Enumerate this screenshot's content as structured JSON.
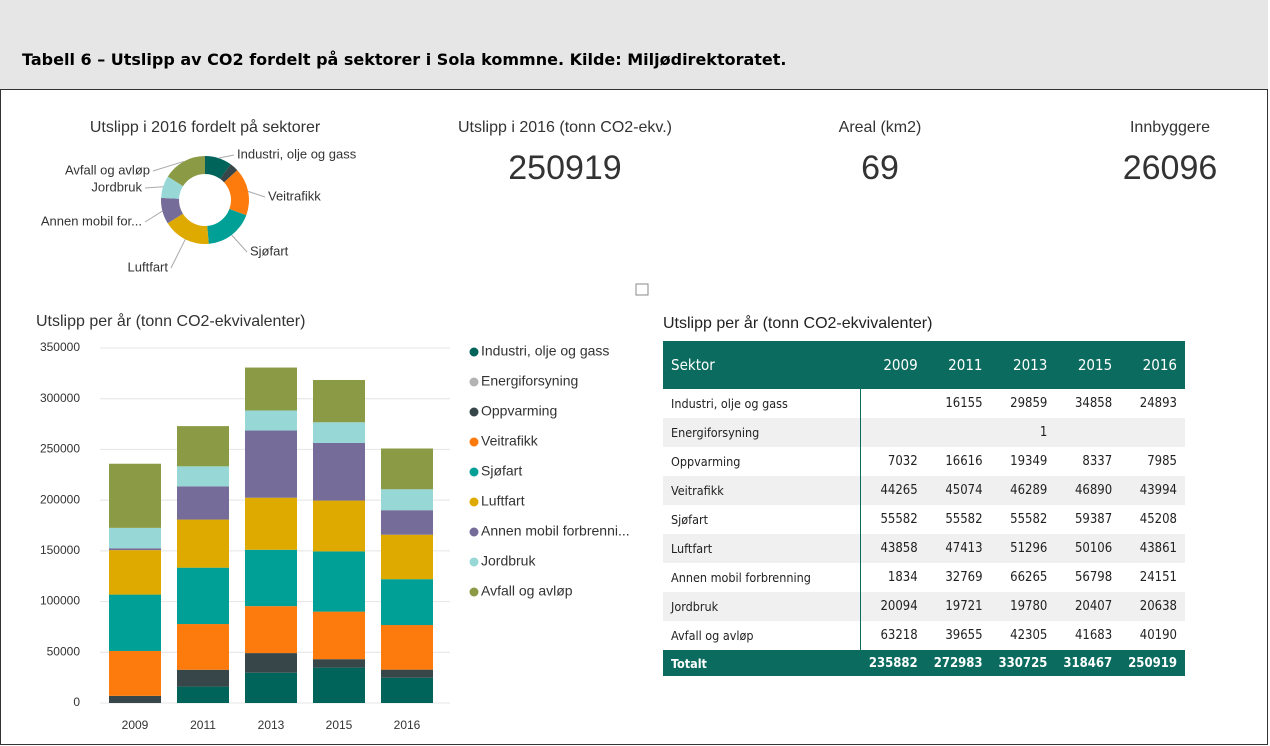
{
  "header": {
    "title": "Tabell 6 – Utslipp av CO2 fordelt på sektorer i Sola kommne. Kilde: Miljødirektoratet."
  },
  "kpis": [
    {
      "label": "Utslipp i 2016 (tonn CO2-ekv.)",
      "value": 250919
    },
    {
      "label": "Areal (km2)",
      "value": 69
    },
    {
      "label": "Innbyggere",
      "value": 26096
    }
  ],
  "chart_data": [
    {
      "type": "donut",
      "title": "Utslipp i 2016 fordelt på sektorer",
      "categories": [
        "Industri, olje og gass",
        null,
        "Veitrafikk",
        "Sjøfart",
        "Luftfart",
        "Annen mobil for...",
        "Jordbruk",
        "Avfall og avløp"
      ],
      "values": [
        24893,
        7985,
        43994,
        45208,
        43861,
        24151,
        20638,
        40190
      ],
      "colors": [
        "#01645a",
        "#374649",
        "#fd7a0c",
        "#01a096",
        "#dfaa00",
        "#766c99",
        "#97d8d6",
        "#8b9a45"
      ]
    },
    {
      "type": "stacked_bar",
      "title": "Utslipp per år (tonn CO2-ekvivalenter)",
      "categories": [
        "2009",
        "2011",
        "2013",
        "2015",
        "2016"
      ],
      "ylim": [
        0,
        350000
      ],
      "yticks": [
        0,
        50000,
        100000,
        150000,
        200000,
        250000,
        300000,
        350000
      ],
      "grid": true,
      "series": [
        {
          "name": "Industri, olje og gass",
          "color": "#01645a",
          "values": [
            null,
            16155,
            29859,
            34858,
            24893
          ]
        },
        {
          "name": "Energiforsyning",
          "color": "#b3b3b3",
          "values": [
            null,
            null,
            1,
            null,
            null
          ]
        },
        {
          "name": "Oppvarming",
          "color": "#374649",
          "values": [
            7032,
            16616,
            19349,
            8337,
            7985
          ]
        },
        {
          "name": "Veitrafikk",
          "color": "#fd7a0c",
          "values": [
            44265,
            45074,
            46289,
            46890,
            43994
          ]
        },
        {
          "name": "Sjøfart",
          "color": "#01a096",
          "values": [
            55582,
            55582,
            55582,
            59387,
            45208
          ]
        },
        {
          "name": "Luftfart",
          "color": "#dfaa00",
          "values": [
            43858,
            47413,
            51296,
            50106,
            43861
          ]
        },
        {
          "name": "Annen mobil forbrenni...",
          "color": "#766c99",
          "values": [
            1834,
            32769,
            66265,
            56798,
            24151
          ]
        },
        {
          "name": "Jordbruk",
          "color": "#97d8d6",
          "values": [
            20094,
            19721,
            19780,
            20407,
            20638
          ]
        },
        {
          "name": "Avfall og avløp",
          "color": "#8b9a45",
          "values": [
            63218,
            39655,
            42305,
            41683,
            40190
          ]
        }
      ]
    }
  ],
  "table": {
    "title": "Utslipp per år (tonn CO2-ekvivalenter)",
    "columns": [
      "Sektor",
      "2009",
      "2011",
      "2013",
      "2015",
      "2016"
    ],
    "rows": [
      [
        "Industri, olje og gass",
        null,
        16155,
        29859,
        34858,
        24893
      ],
      [
        "Energiforsyning",
        null,
        null,
        1,
        null,
        null
      ],
      [
        "Oppvarming",
        7032,
        16616,
        19349,
        8337,
        7985
      ],
      [
        "Veitrafikk",
        44265,
        45074,
        46289,
        46890,
        43994
      ],
      [
        "Sjøfart",
        55582,
        55582,
        55582,
        59387,
        45208
      ],
      [
        "Luftfart",
        43858,
        47413,
        51296,
        50106,
        43861
      ],
      [
        "Annen mobil forbrenning",
        1834,
        32769,
        66265,
        56798,
        24151
      ],
      [
        "Jordbruk",
        20094,
        19721,
        19780,
        20407,
        20638
      ],
      [
        "Avfall og avløp",
        63218,
        39655,
        42305,
        41683,
        40190
      ]
    ],
    "total": [
      "Totalt",
      235882,
      272983,
      330725,
      318467,
      250919
    ]
  }
}
